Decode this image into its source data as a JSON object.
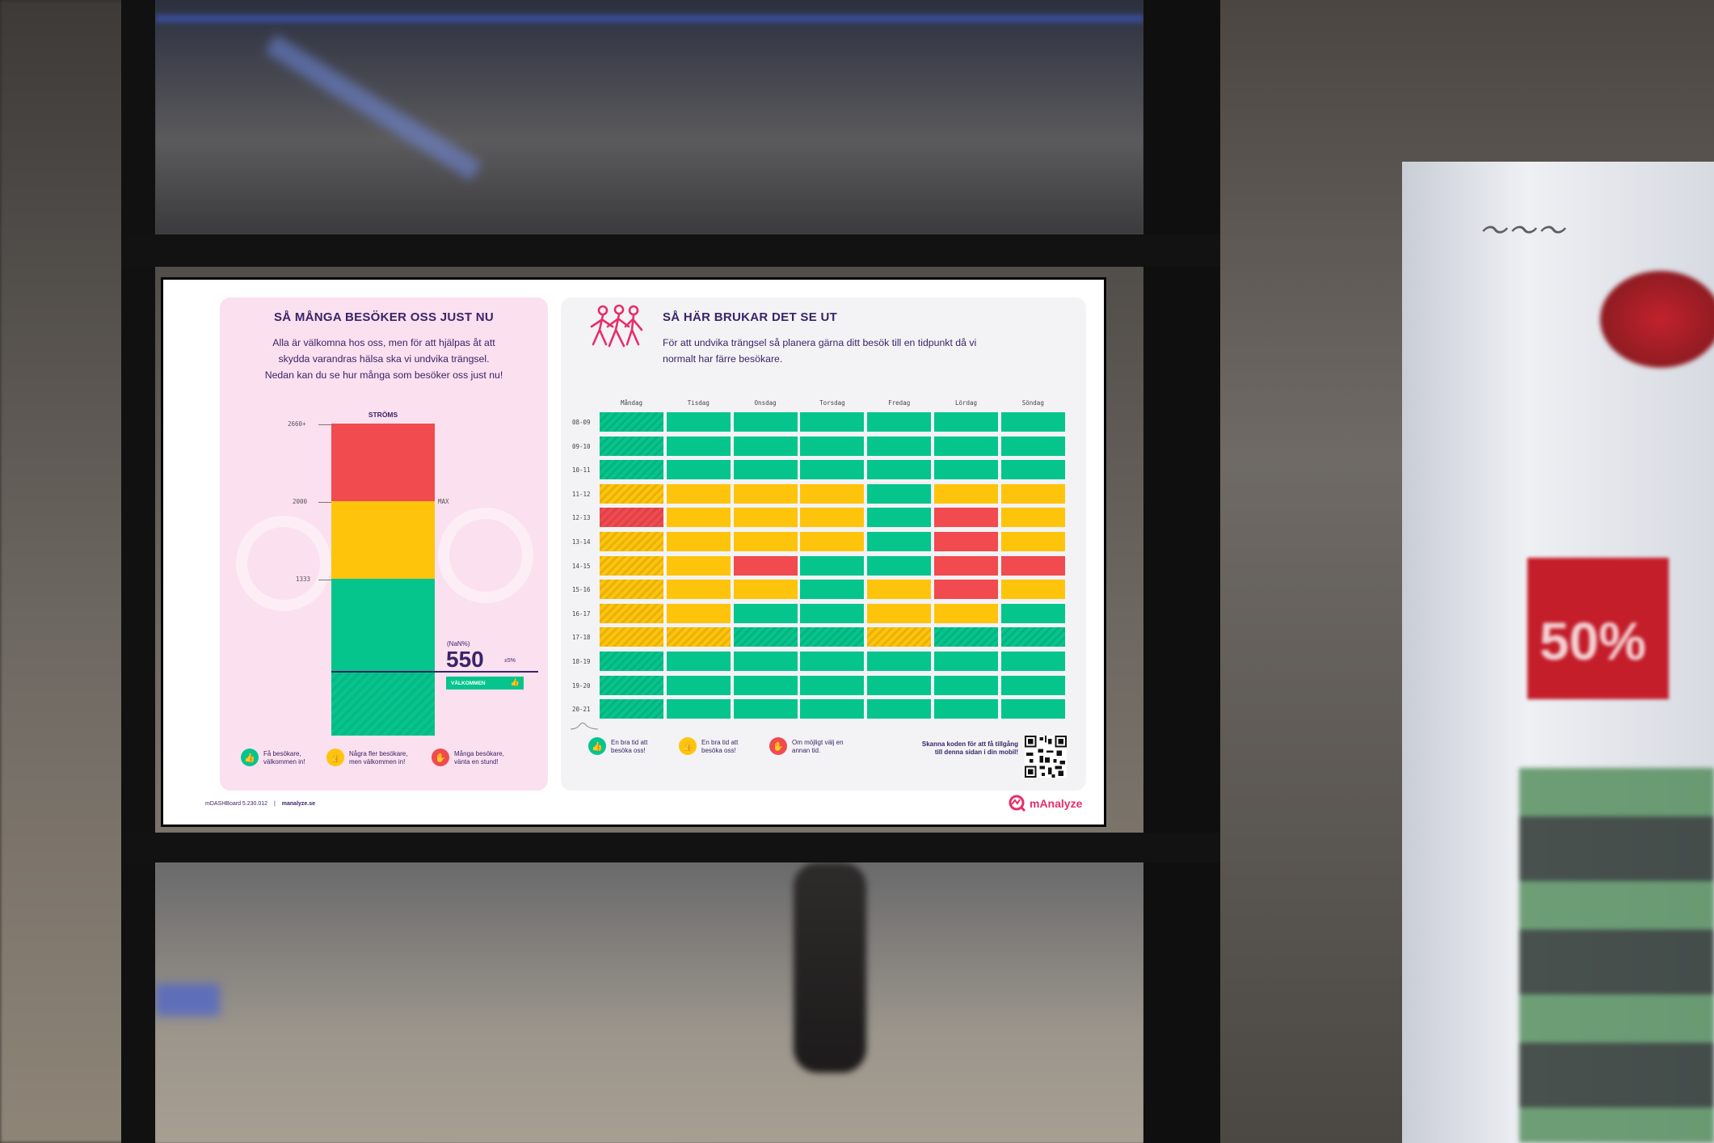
{
  "environment": {
    "sale_sign_text": "50%"
  },
  "screen": {
    "left": {
      "title": "SÅ MÅNGA BESÖKER OSS JUST NU",
      "intro": [
        "Alla är välkomna hos oss, men för att hjälpas åt att",
        "skydda varandras hälsa ska vi undvika trängsel.",
        "Nedan kan du se hur många som besöker oss just nu!"
      ],
      "meter_label": "STRÖMS",
      "ticks": {
        "top": "2660+",
        "mid": "2000",
        "low": "1333",
        "max": "MAX"
      },
      "current": {
        "prefix": "(NaN%)",
        "value": "550",
        "tolerance": "±5%",
        "badge": "VÄLKOMMEN",
        "level": 550,
        "max": 2660
      },
      "legend": [
        {
          "text": [
            "Få besökare,",
            "välkommen in!"
          ],
          "color": "#05c58d",
          "icon": "thumbs-up-icon"
        },
        {
          "text": [
            "Några fler besökare,",
            "men välkommen in!"
          ],
          "color": "#fec40c",
          "icon": "thumbs-up-icon"
        },
        {
          "text": [
            "Många besökare,",
            "vänta en stund!"
          ],
          "color": "#f14a4f",
          "icon": "hand-stop-icon"
        }
      ]
    },
    "right": {
      "title": "SÅ HÄR BRUKAR DET SE UT",
      "intro": [
        "För att undvika trängsel så planera gärna ditt besök till en tidpunkt då vi",
        "normalt har färre besökare."
      ],
      "legend": [
        {
          "text": [
            "En bra tid att",
            "besöka oss!"
          ],
          "color": "#05c58d",
          "icon": "thumbs-up-icon"
        },
        {
          "text": [
            "En bra tid att",
            "besöka oss!"
          ],
          "color": "#fec40c",
          "icon": "thumbs-up-icon"
        },
        {
          "text": [
            "Om möjligt välj en",
            "annan tid."
          ],
          "color": "#f14a4f",
          "icon": "hand-stop-icon"
        }
      ],
      "qr_text": [
        "Skanna koden för att få tillgång",
        "till denna sidan i din mobil!"
      ]
    },
    "footer": {
      "version": "mDASHBoard 5.230.012",
      "separator": "|",
      "site": "manalyze.se",
      "brand": "mAnalyze"
    }
  },
  "chart_data": {
    "type": "heatmap",
    "x": [
      "Måndag",
      "Tisdag",
      "Onsdag",
      "Torsdag",
      "Fredag",
      "Lördag",
      "Söndag"
    ],
    "y": [
      "08-09",
      "09-10",
      "10-11",
      "11-12",
      "12-13",
      "13-14",
      "14-15",
      "15-16",
      "16-17",
      "17-18",
      "18-19",
      "19-20",
      "20-21"
    ],
    "levels": [
      [
        "g",
        "g",
        "g",
        "g",
        "g",
        "g",
        "g"
      ],
      [
        "g",
        "g",
        "g",
        "g",
        "g",
        "g",
        "g"
      ],
      [
        "g",
        "g",
        "g",
        "g",
        "g",
        "g",
        "g"
      ],
      [
        "y",
        "y",
        "y",
        "y",
        "g",
        "y",
        "y"
      ],
      [
        "r",
        "y",
        "y",
        "y",
        "g",
        "r",
        "y"
      ],
      [
        "y",
        "y",
        "y",
        "y",
        "g",
        "r",
        "y"
      ],
      [
        "y",
        "y",
        "r",
        "g",
        "g",
        "r",
        "r"
      ],
      [
        "y",
        "y",
        "y",
        "g",
        "y",
        "r",
        "y"
      ],
      [
        "y",
        "y",
        "g",
        "g",
        "y",
        "y",
        "g"
      ],
      [
        "y",
        "y",
        "g",
        "g",
        "y",
        "g",
        "g"
      ],
      [
        "g",
        "g",
        "g",
        "g",
        "g",
        "g",
        "g"
      ],
      [
        "g",
        "g",
        "g",
        "g",
        "g",
        "g",
        "g"
      ],
      [
        "g",
        "g",
        "g",
        "g",
        "g",
        "g",
        "g"
      ]
    ],
    "level_colors": {
      "g": "#05c58d",
      "y": "#fec40c",
      "r": "#f14a4f"
    }
  }
}
